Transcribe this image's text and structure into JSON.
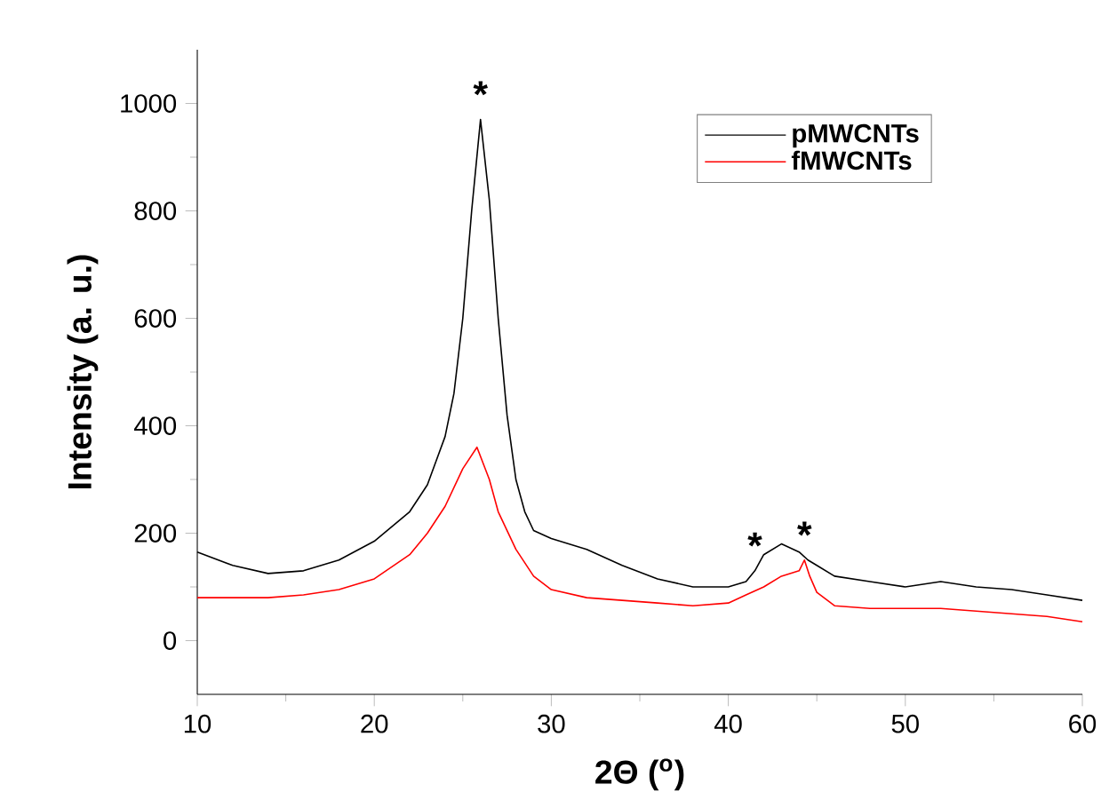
{
  "chart_data": {
    "type": "line",
    "xlabel": "2Θ ($^{o}$)",
    "ylabel": "Intensity (a. u.)",
    "xlim": [
      10,
      60
    ],
    "xticks": [
      10,
      20,
      30,
      40,
      50,
      60
    ],
    "ylim": [
      -100,
      1100
    ],
    "yticks": [
      0,
      200,
      400,
      600,
      800,
      1000
    ],
    "legend": "top right",
    "series": [
      {
        "name": "pMWCNTs",
        "color": "#000000",
        "x": [
          10,
          12,
          14,
          16,
          18,
          20,
          22,
          23,
          24,
          24.5,
          25,
          25.5,
          26,
          26.5,
          27,
          27.5,
          28,
          28.5,
          29,
          30,
          32,
          34,
          36,
          38,
          40,
          41,
          41.5,
          42,
          43,
          44,
          44.5,
          45,
          46,
          48,
          50,
          52,
          54,
          56,
          58,
          60
        ],
        "values": [
          165,
          140,
          125,
          130,
          150,
          185,
          240,
          290,
          380,
          460,
          600,
          800,
          970,
          820,
          600,
          420,
          300,
          240,
          205,
          190,
          170,
          140,
          115,
          100,
          100,
          110,
          130,
          160,
          180,
          165,
          150,
          140,
          120,
          110,
          100,
          110,
          100,
          95,
          85,
          75
        ]
      },
      {
        "name": "fMWCNTs",
        "color": "#ff0000",
        "x": [
          10,
          14,
          16,
          18,
          20,
          22,
          23,
          24,
          25,
          25.8,
          26.5,
          27,
          28,
          29,
          30,
          32,
          34,
          36,
          38,
          40,
          41,
          42,
          43,
          44,
          44.3,
          44.6,
          45,
          46,
          48,
          50,
          52,
          54,
          56,
          58,
          60
        ],
        "values": [
          80,
          80,
          85,
          95,
          115,
          160,
          200,
          250,
          320,
          360,
          300,
          240,
          170,
          120,
          95,
          80,
          75,
          70,
          65,
          70,
          85,
          100,
          120,
          130,
          150,
          120,
          90,
          65,
          60,
          60,
          60,
          55,
          50,
          45,
          35
        ]
      }
    ],
    "annotations": [
      {
        "text": "*",
        "x": 26,
        "y": 970
      },
      {
        "text": "*",
        "x": 41.5,
        "y": 130
      },
      {
        "text": "*",
        "x": 44.3,
        "y": 150
      }
    ]
  }
}
